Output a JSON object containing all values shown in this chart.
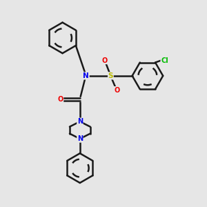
{
  "background_color": "#e6e6e6",
  "bond_color": "#1a1a1a",
  "bond_width": 1.8,
  "atom_colors": {
    "N": "#0000ee",
    "O": "#ee0000",
    "S": "#bbbb00",
    "Cl": "#00bb00",
    "C": "#1a1a1a"
  },
  "figsize": [
    3.0,
    3.0
  ],
  "dpi": 100
}
